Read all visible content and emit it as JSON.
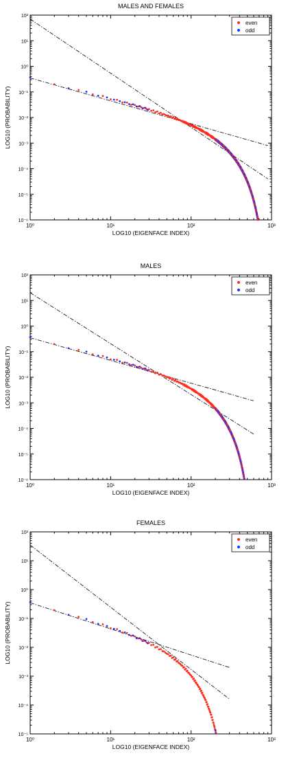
{
  "colors": {
    "even": "#ff2a1a",
    "odd": "#1a2cff",
    "fit": "#000000"
  },
  "chart_data": [
    {
      "type": "scatter",
      "title": "MALES AND FEMALES",
      "xlabel": "LOG10 (EIGENFACE INDEX)",
      "ylabel": "LOG10 (PROBABILITY)",
      "xscale": "log",
      "yscale": "log",
      "xlim": [
        1,
        1000
      ],
      "ylim": [
        1e-06,
        100
      ],
      "x_tick_labels": [
        "10⁰",
        "10¹",
        "10²",
        "10³"
      ],
      "y_tick_labels": [
        "10⁻⁶",
        "10⁻⁵",
        "10⁻⁴",
        "10⁻³",
        "10⁻²",
        "10⁻¹",
        "10⁰",
        "10¹",
        "10²"
      ],
      "legend_position": "top-right",
      "legend": [
        "even",
        "odd"
      ],
      "n_max": 900,
      "curve": {
        "a": 0.35,
        "b": 0.78,
        "c": 5.5,
        "n_max": 900
      },
      "fit_lines": [
        {
          "x": [
            1,
            900
          ],
          "y": [
            0.35,
            0.0008
          ]
        },
        {
          "x": [
            1,
            900
          ],
          "y": [
            70,
            4e-05
          ]
        }
      ]
    },
    {
      "type": "scatter",
      "title": "MALES",
      "xlabel": "LOG10 (EIGENFACE INDEX)",
      "ylabel": "LOG10 (PROBABILITY)",
      "xscale": "log",
      "yscale": "log",
      "xlim": [
        1,
        1000
      ],
      "ylim": [
        1e-06,
        100
      ],
      "x_tick_labels": [
        "10⁰",
        "10¹",
        "10²",
        "10³"
      ],
      "y_tick_labels": [
        "10⁻⁶",
        "10⁻⁵",
        "10⁻⁴",
        "10⁻³",
        "10⁻²",
        "10⁻¹",
        "10⁰",
        "10¹",
        "10²"
      ],
      "legend_position": "top-right",
      "legend": [
        "even",
        "odd"
      ],
      "n_max": 600,
      "curve": {
        "a": 0.35,
        "b": 0.78,
        "c": 5.5,
        "n_max": 600
      },
      "fit_lines": [
        {
          "x": [
            1,
            600
          ],
          "y": [
            0.35,
            0.0012
          ]
        },
        {
          "x": [
            1,
            600
          ],
          "y": [
            20,
            6e-05
          ]
        }
      ]
    },
    {
      "type": "scatter",
      "title": "FEMALES",
      "xlabel": "LOG10 (EIGENFACE INDEX)",
      "ylabel": "LOG10 (PROBABILITY)",
      "xscale": "log",
      "yscale": "log",
      "xlim": [
        1,
        1000
      ],
      "ylim": [
        1e-05,
        100
      ],
      "x_tick_labels": [
        "10⁰",
        "10¹",
        "10²",
        "10³"
      ],
      "y_tick_labels": [
        "10⁻⁵",
        "10⁻⁴",
        "10⁻³",
        "10⁻²",
        "10⁻¹",
        "10⁰",
        "10¹",
        "10²"
      ],
      "legend_position": "top-right",
      "legend": [
        "even",
        "odd"
      ],
      "n_max": 300,
      "curve": {
        "a": 0.35,
        "b": 0.78,
        "c": 5.5,
        "n_max": 300
      },
      "fit_lines": [
        {
          "x": [
            1,
            300
          ],
          "y": [
            0.35,
            0.002
          ]
        },
        {
          "x": [
            1,
            300
          ],
          "y": [
            35,
            0.00016
          ]
        }
      ]
    }
  ]
}
